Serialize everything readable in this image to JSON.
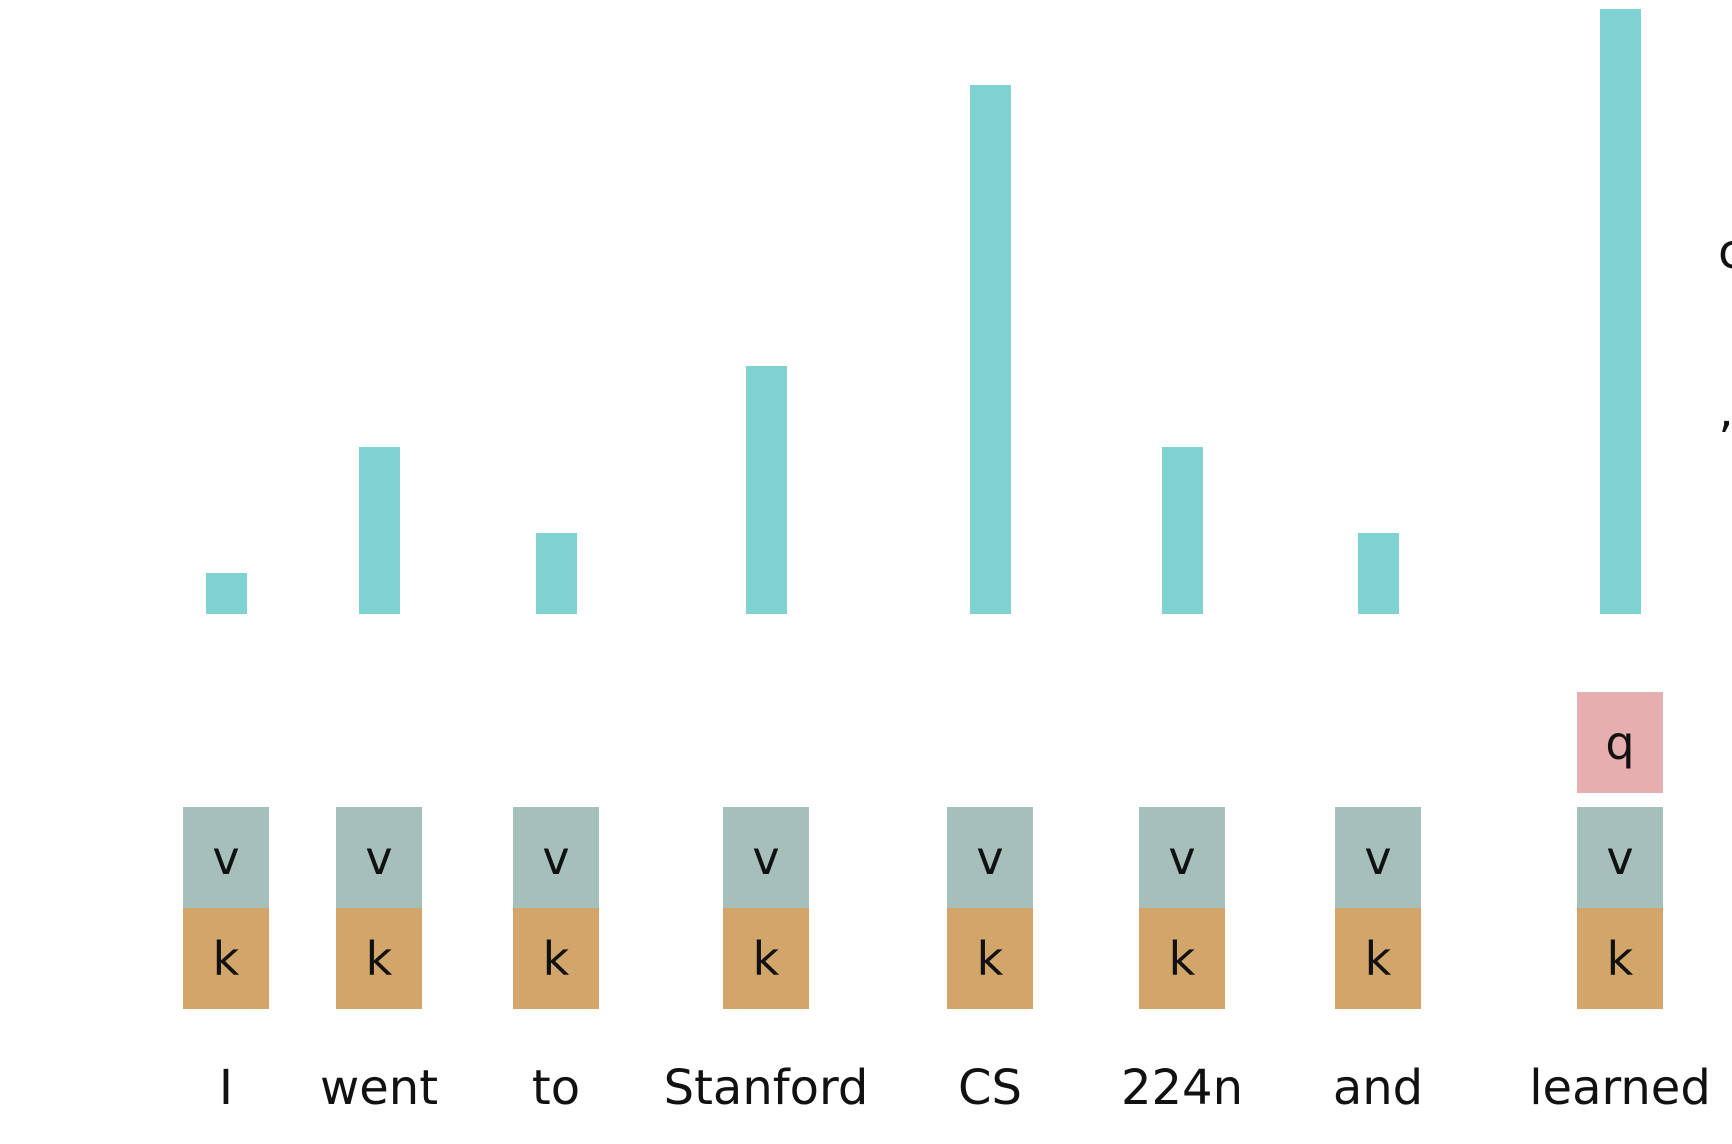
{
  "colors": {
    "bar": "#80d1d1",
    "value": "#a5c0bb",
    "key": "#d2a56b",
    "query": "#e7aeb0",
    "text": "#111111"
  },
  "tokens": [
    {
      "word": "I",
      "weight": 0.075,
      "value_label": "v",
      "key_label": "k"
    },
    {
      "word": "went",
      "weight": 0.31,
      "value_label": "v",
      "key_label": "k"
    },
    {
      "word": "to",
      "weight": 0.15,
      "value_label": "v",
      "key_label": "k"
    },
    {
      "word": "Stanford",
      "weight": 0.46,
      "value_label": "v",
      "key_label": "k"
    },
    {
      "word": "CS",
      "weight": 0.98,
      "value_label": "v",
      "key_label": "k"
    },
    {
      "word": "224n",
      "weight": 0.31,
      "value_label": "v",
      "key_label": "k"
    },
    {
      "word": "and",
      "weight": 0.15,
      "value_label": "v",
      "key_label": "k"
    },
    {
      "word": "learned",
      "weight": 1.12,
      "value_label": "v",
      "key_label": "k",
      "query_label": "q"
    }
  ],
  "edge_text": {
    "upper": "c",
    "lower": "’"
  }
}
